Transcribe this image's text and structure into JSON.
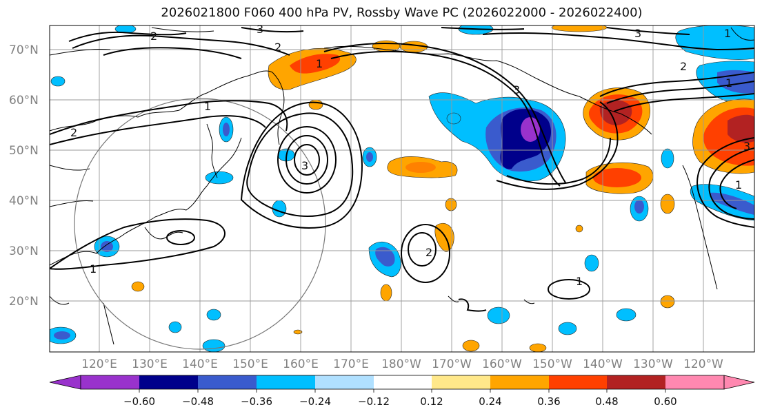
{
  "title": "2026021800 F060 400 hPa PV, Rossby Wave PC (2026022000 - 2026022400)",
  "lat_labels": [
    "70°N",
    "60°N",
    "50°N",
    "40°N",
    "30°N",
    "20°N"
  ],
  "lon_labels": [
    "120°E",
    "130°E",
    "140°E",
    "150°E",
    "160°E",
    "170°E",
    "180°W",
    "170°W",
    "160°W",
    "150°W",
    "140°W",
    "130°W",
    "120°W"
  ],
  "colorbar": {
    "ticks": [
      "−0.60",
      "−0.48",
      "−0.36",
      "−0.24",
      "−0.12",
      "0.12",
      "0.24",
      "0.36",
      "0.48",
      "0.60"
    ],
    "colors": [
      "#9932cc",
      "#00008b",
      "#3a5bcd",
      "#00bfff",
      "#b0e0ff",
      "#ffffff",
      "#ffe88a",
      "#ffa500",
      "#ff4000",
      "#b22222",
      "#ff88b0"
    ]
  },
  "contour_labels": [
    "1",
    "2",
    "3"
  ],
  "colors": {
    "purple": "#9932cc",
    "navy": "#00008b",
    "blue": "#3a5bcd",
    "sky": "#00bfff",
    "lightblue": "#b0e0ff",
    "yellow": "#ffe88a",
    "orange": "#ffa500",
    "red": "#ff4000",
    "darkred": "#b22222",
    "pink": "#ff88b0",
    "grid": "#999999",
    "coast": "#000000"
  }
}
